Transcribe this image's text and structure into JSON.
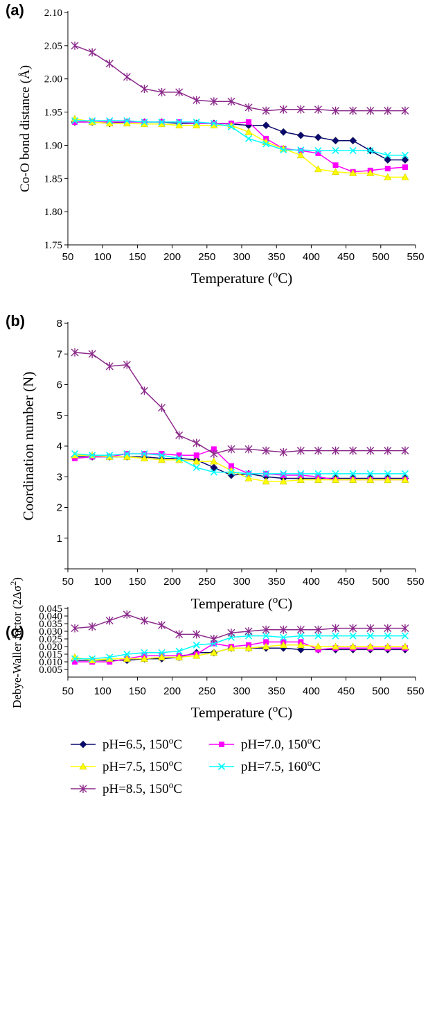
{
  "chart_data": [
    {
      "panel_label": "(a)",
      "type": "line",
      "ylabel": "Co-O bond distance (Å)",
      "xlabel": "Temperature (°C)",
      "xlabel_main": "Temperature (",
      "xlabel_sup": "o",
      "xlabel_end": "C)",
      "x_tick_labels": [
        "50",
        "100",
        "150",
        "200",
        "250",
        "300",
        "350",
        "400",
        "450",
        "500",
        "550"
      ],
      "y_tick_labels": [
        "1.75",
        "1.80",
        "1.85",
        "1.90",
        "1.95",
        "2.00",
        "2.05",
        "2.10"
      ],
      "ylim": [
        1.75,
        2.1
      ],
      "x": [
        60,
        85,
        110,
        135,
        160,
        185,
        210,
        235,
        260,
        285,
        310,
        335,
        360,
        385,
        410,
        435,
        460,
        485,
        510,
        535
      ],
      "series": [
        {
          "name": "pH=6.5, 150oC",
          "values": [
            1.935,
            1.935,
            1.933,
            1.935,
            1.935,
            1.935,
            1.933,
            1.933,
            1.933,
            1.932,
            1.93,
            1.93,
            1.92,
            1.915,
            1.912,
            1.907,
            1.907,
            1.892,
            1.878,
            1.878
          ]
        },
        {
          "name": "pH=7.0, 150oC",
          "values": [
            1.935,
            1.935,
            1.935,
            1.935,
            1.935,
            1.935,
            1.935,
            1.933,
            1.933,
            1.933,
            1.935,
            1.91,
            1.895,
            1.892,
            1.888,
            1.87,
            1.86,
            1.862,
            1.865,
            1.867
          ]
        },
        {
          "name": "pH=7.5, 150oC",
          "values": [
            1.94,
            1.935,
            1.933,
            1.933,
            1.932,
            1.932,
            1.93,
            1.93,
            1.93,
            1.93,
            1.92,
            1.905,
            1.895,
            1.885,
            1.864,
            1.86,
            1.858,
            1.858,
            1.852,
            1.852
          ]
        },
        {
          "name": "pH=7.5, 160oC",
          "values": [
            1.937,
            1.937,
            1.937,
            1.937,
            1.935,
            1.935,
            1.935,
            1.935,
            1.933,
            1.928,
            1.91,
            1.902,
            1.893,
            1.893,
            1.892,
            1.892,
            1.892,
            1.892,
            1.885,
            1.885
          ]
        },
        {
          "name": "pH=8.5, 150oC",
          "values": [
            2.05,
            2.04,
            2.023,
            2.003,
            1.985,
            1.98,
            1.98,
            1.968,
            1.966,
            1.966,
            1.957,
            1.952,
            1.954,
            1.954,
            1.954,
            1.952,
            1.952,
            1.952,
            1.952,
            1.952
          ]
        }
      ]
    },
    {
      "panel_label": "(b)",
      "type": "line",
      "ylabel": "Coordination number (N)",
      "xlabel": "Temperature (°C)",
      "xlabel_main": "Temperature (",
      "xlabel_sup": "o",
      "xlabel_end": "C)",
      "x_tick_labels": [
        "50",
        "100",
        "150",
        "200",
        "250",
        "300",
        "350",
        "400",
        "450",
        "500",
        "550"
      ],
      "y_tick_labels": [
        "1",
        "2",
        "3",
        "4",
        "5",
        "6",
        "7",
        "8"
      ],
      "ylim": [
        0,
        8
      ],
      "x": [
        60,
        85,
        110,
        135,
        160,
        185,
        210,
        235,
        260,
        285,
        310,
        335,
        360,
        385,
        410,
        435,
        460,
        485,
        510,
        535
      ],
      "series": [
        {
          "name": "pH=6.5, 150oC",
          "values": [
            3.65,
            3.65,
            3.65,
            3.65,
            3.65,
            3.6,
            3.6,
            3.55,
            3.3,
            3.05,
            3.1,
            3.0,
            2.95,
            2.95,
            2.95,
            2.95,
            2.95,
            2.95,
            2.95,
            2.95
          ]
        },
        {
          "name": "pH=7.0, 150oC",
          "values": [
            3.6,
            3.65,
            3.65,
            3.75,
            3.75,
            3.75,
            3.7,
            3.7,
            3.9,
            3.35,
            3.1,
            3.1,
            3.05,
            3.05,
            3.0,
            2.9,
            2.9,
            2.9,
            2.9,
            2.9
          ]
        },
        {
          "name": "pH=7.5, 150oC",
          "values": [
            3.7,
            3.7,
            3.65,
            3.65,
            3.6,
            3.55,
            3.55,
            3.5,
            3.5,
            3.2,
            2.95,
            2.85,
            2.85,
            2.9,
            2.9,
            2.9,
            2.9,
            2.9,
            2.9,
            2.9
          ]
        },
        {
          "name": "pH=7.5, 160oC",
          "values": [
            3.75,
            3.7,
            3.7,
            3.75,
            3.75,
            3.7,
            3.6,
            3.3,
            3.15,
            3.15,
            3.1,
            3.1,
            3.1,
            3.1,
            3.1,
            3.1,
            3.1,
            3.1,
            3.1,
            3.1
          ]
        },
        {
          "name": "pH=8.5, 150oC",
          "values": [
            7.05,
            7.0,
            6.6,
            6.65,
            5.8,
            5.25,
            4.35,
            4.1,
            3.75,
            3.9,
            3.9,
            3.85,
            3.8,
            3.85,
            3.85,
            3.85,
            3.85,
            3.85,
            3.85,
            3.85
          ]
        }
      ]
    },
    {
      "panel_label": "(c)",
      "type": "line",
      "ylabel": "Debye-Waller factor (2Δσ²)",
      "ylabel_main": "Debye-Waller factor  (2Δσ",
      "ylabel_sup": "2",
      "ylabel_end": ")",
      "xlabel": "Temperature (°C)",
      "xlabel_main": "Temperature (",
      "xlabel_sup": "o",
      "xlabel_end": "C)",
      "x_tick_labels": [
        "50",
        "100",
        "150",
        "200",
        "250",
        "300",
        "350",
        "400",
        "450",
        "500",
        "550"
      ],
      "y_tick_labels": [
        "0.005",
        "0.010",
        "0.015",
        "0.020",
        "0.025",
        "0.030",
        "0.035",
        "0.040",
        "0.045"
      ],
      "ylim": [
        0,
        0.045
      ],
      "x": [
        60,
        85,
        110,
        135,
        160,
        185,
        210,
        235,
        260,
        285,
        310,
        335,
        360,
        385,
        410,
        435,
        460,
        485,
        510,
        535
      ],
      "series": [
        {
          "name": "pH=6.5, 150oC",
          "values": [
            0.011,
            0.011,
            0.011,
            0.011,
            0.012,
            0.012,
            0.013,
            0.016,
            0.016,
            0.019,
            0.019,
            0.019,
            0.019,
            0.018,
            0.018,
            0.018,
            0.018,
            0.018,
            0.018,
            0.018
          ]
        },
        {
          "name": "pH=7.0, 150oC",
          "values": [
            0.01,
            0.01,
            0.01,
            0.012,
            0.014,
            0.014,
            0.014,
            0.015,
            0.022,
            0.02,
            0.021,
            0.023,
            0.023,
            0.023,
            0.018,
            0.019,
            0.019,
            0.019,
            0.019,
            0.019
          ]
        },
        {
          "name": "pH=7.5, 150oC",
          "values": [
            0.013,
            0.011,
            0.012,
            0.012,
            0.012,
            0.013,
            0.013,
            0.014,
            0.016,
            0.019,
            0.019,
            0.02,
            0.021,
            0.021,
            0.02,
            0.02,
            0.02,
            0.02,
            0.02,
            0.02
          ]
        },
        {
          "name": "pH=7.5, 160oC",
          "values": [
            0.012,
            0.012,
            0.013,
            0.015,
            0.016,
            0.016,
            0.017,
            0.021,
            0.022,
            0.026,
            0.027,
            0.027,
            0.026,
            0.027,
            0.027,
            0.027,
            0.027,
            0.027,
            0.027,
            0.027
          ]
        },
        {
          "name": "pH=8.5, 150oC",
          "values": [
            0.032,
            0.033,
            0.037,
            0.041,
            0.037,
            0.034,
            0.028,
            0.028,
            0.025,
            0.029,
            0.03,
            0.031,
            0.031,
            0.031,
            0.031,
            0.032,
            0.032,
            0.032,
            0.032,
            0.032
          ]
        }
      ]
    }
  ],
  "legend": [
    {
      "main": "pH=6.5, 150",
      "sup": "o",
      "end": "C",
      "color": "#0a0a6e",
      "marker": "diamond"
    },
    {
      "main": "pH=7.0, 150",
      "sup": "o",
      "end": "C",
      "color": "#ff00ff",
      "marker": "square"
    },
    {
      "main": "pH=7.5, 150",
      "sup": "o",
      "end": "C",
      "color": "#ffff00",
      "marker": "triangle"
    },
    {
      "main": "pH=7.5, 160",
      "sup": "o",
      "end": "C",
      "color": "#00ffff",
      "marker": "x"
    },
    {
      "main": "pH=8.5, 150",
      "sup": "o",
      "end": "C",
      "color": "#8b2a8b",
      "marker": "star"
    }
  ],
  "colors": {
    "pH65_150": "#0a0a6e",
    "pH70_150": "#ff00ff",
    "pH75_150": "#ffff00",
    "pH75_160": "#00ffff",
    "pH85_150": "#8b2a8b"
  }
}
